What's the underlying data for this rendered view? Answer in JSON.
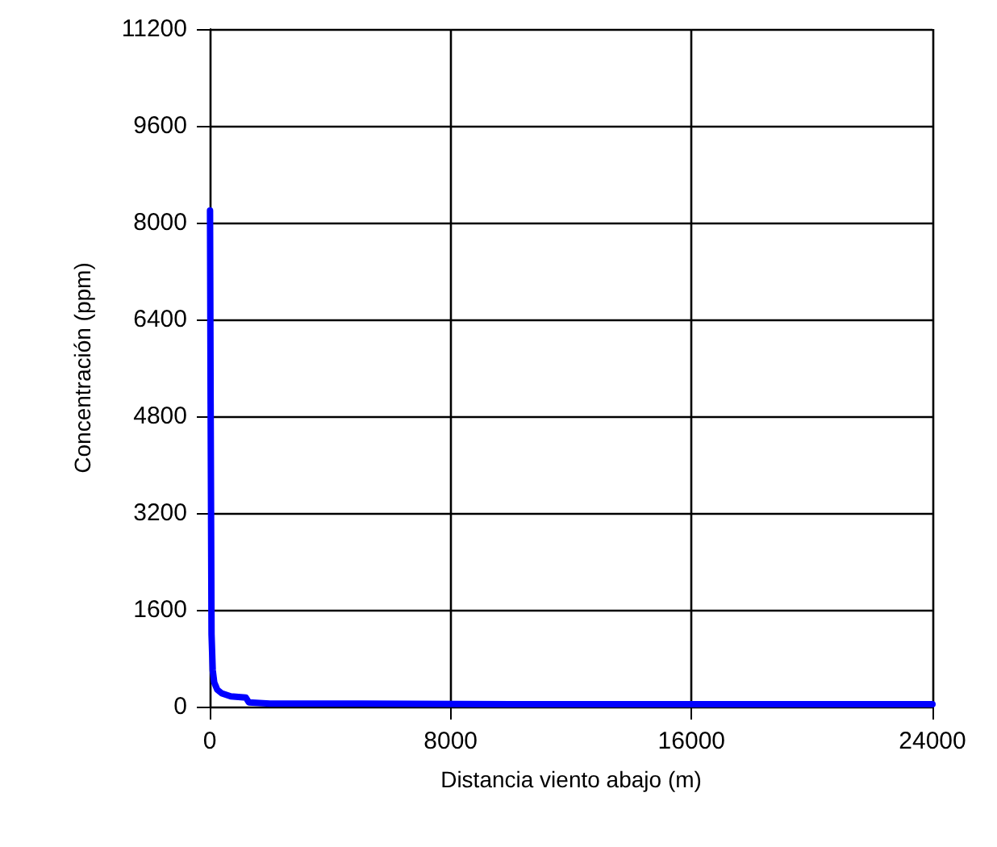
{
  "chart_data": {
    "type": "line",
    "xlabel": "Distancia viento abajo (m)",
    "ylabel": "Concentración (ppm)",
    "series": [
      {
        "color": "#0000ff",
        "x": [
          10,
          30,
          60,
          100,
          150,
          250,
          400,
          700,
          1200,
          1300,
          2000,
          5000,
          10000,
          16000,
          24000
        ],
        "values": [
          8200,
          5000,
          1200,
          600,
          400,
          280,
          220,
          170,
          150,
          70,
          50,
          50,
          40,
          40,
          40
        ]
      }
    ],
    "xlim": [
      0,
      24000
    ],
    "xticks": [
      0,
      8000,
      16000,
      24000
    ],
    "ylim": [
      0,
      11200
    ],
    "yticks": [
      0,
      1600,
      3200,
      4800,
      6400,
      8000,
      9600,
      11200
    ],
    "grid": true,
    "marker": "none",
    "line_style": "solid"
  }
}
